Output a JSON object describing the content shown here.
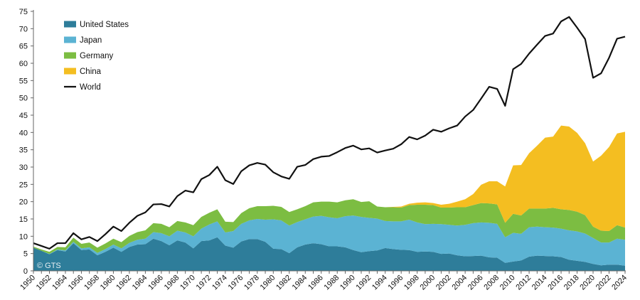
{
  "watermark": "© GTS",
  "chart_data": {
    "type": "area",
    "title": "",
    "xlabel": "",
    "ylabel": "",
    "xlim": [
      1950,
      2024
    ],
    "ylim": [
      0,
      75
    ],
    "yticks": [
      0,
      5,
      10,
      15,
      20,
      25,
      30,
      35,
      40,
      45,
      50,
      55,
      60,
      65,
      70,
      75
    ],
    "xtick_step": 2,
    "grid": false,
    "legend_position": "top-left",
    "x": [
      1950,
      1951,
      1952,
      1953,
      1954,
      1955,
      1956,
      1957,
      1958,
      1959,
      1960,
      1961,
      1962,
      1963,
      1964,
      1965,
      1966,
      1967,
      1968,
      1969,
      1970,
      1971,
      1972,
      1973,
      1974,
      1975,
      1976,
      1977,
      1978,
      1979,
      1980,
      1981,
      1982,
      1983,
      1984,
      1985,
      1986,
      1987,
      1988,
      1989,
      1990,
      1991,
      1992,
      1993,
      1994,
      1995,
      1996,
      1997,
      1998,
      1999,
      2000,
      2001,
      2002,
      2003,
      2004,
      2005,
      2006,
      2007,
      2008,
      2009,
      2010,
      2011,
      2012,
      2013,
      2014,
      2015,
      2016,
      2017,
      2018,
      2019,
      2020,
      2021,
      2022,
      2023,
      2024
    ],
    "series": [
      {
        "name": "United States",
        "kind": "stacked-area",
        "color": "#2e7d9a",
        "values": [
          6.7,
          5.8,
          4.8,
          6.0,
          5.6,
          8.0,
          6.0,
          6.2,
          4.5,
          5.5,
          6.7,
          5.5,
          6.9,
          7.6,
          7.7,
          9.3,
          8.6,
          7.4,
          8.8,
          8.2,
          6.5,
          8.6,
          8.8,
          9.7,
          7.3,
          6.7,
          8.5,
          9.2,
          9.2,
          8.4,
          6.4,
          6.3,
          5.1,
          6.8,
          7.6,
          8.0,
          7.7,
          7.1,
          7.1,
          6.8,
          6.0,
          5.4,
          5.7,
          5.9,
          6.6,
          6.3,
          6.1,
          6.0,
          5.5,
          5.6,
          5.5,
          4.9,
          5.0,
          4.5,
          4.2,
          4.3,
          4.4,
          3.9,
          3.8,
          2.3,
          2.7,
          3.0,
          4.1,
          4.4,
          4.3,
          4.2,
          4.0,
          3.2,
          2.9,
          2.6,
          2.0,
          1.6,
          1.8,
          1.8,
          1.5
        ]
      },
      {
        "name": "Japan",
        "kind": "stacked-area",
        "color": "#5bb3d3",
        "values": [
          0.0,
          0.0,
          0.1,
          0.2,
          0.3,
          0.4,
          0.5,
          0.6,
          0.7,
          0.8,
          0.9,
          1.0,
          1.2,
          1.4,
          1.6,
          1.9,
          2.3,
          2.6,
          2.8,
          2.9,
          3.5,
          3.6,
          4.6,
          4.6,
          3.8,
          4.8,
          5.1,
          5.4,
          5.8,
          6.4,
          8.5,
          8.3,
          8.0,
          7.3,
          7.3,
          7.7,
          8.2,
          8.4,
          8.1,
          9.0,
          10.0,
          10.2,
          9.6,
          9.2,
          7.8,
          8.0,
          8.2,
          8.8,
          8.5,
          7.9,
          8.1,
          8.6,
          8.3,
          8.6,
          9.1,
          9.5,
          9.6,
          10.0,
          9.8,
          7.4,
          8.3,
          7.7,
          8.5,
          8.4,
          8.3,
          8.3,
          8.2,
          8.5,
          8.5,
          8.2,
          7.5,
          6.6,
          6.4,
          7.5,
          7.5
        ]
      },
      {
        "name": "Germany",
        "kind": "stacked-area",
        "color": "#7cbd42",
        "values": [
          0.3,
          0.4,
          0.6,
          0.7,
          0.9,
          1.2,
          1.3,
          1.4,
          1.5,
          1.6,
          1.7,
          1.8,
          2.0,
          2.2,
          2.4,
          2.6,
          2.7,
          2.6,
          2.8,
          2.9,
          3.2,
          3.4,
          3.4,
          3.5,
          3.1,
          2.6,
          3.1,
          3.5,
          3.7,
          3.9,
          3.9,
          3.9,
          3.9,
          3.7,
          3.8,
          4.1,
          4.1,
          4.5,
          4.6,
          4.6,
          4.7,
          4.3,
          4.8,
          3.5,
          4.0,
          4.1,
          4.0,
          4.2,
          5.1,
          5.6,
          5.4,
          4.8,
          5.0,
          5.3,
          5.1,
          5.2,
          5.6,
          5.6,
          5.6,
          4.2,
          5.5,
          5.3,
          5.4,
          5.2,
          5.4,
          5.7,
          5.6,
          5.9,
          5.7,
          5.3,
          3.3,
          3.4,
          3.3,
          3.9,
          3.5
        ]
      },
      {
        "name": "China",
        "kind": "stacked-area",
        "color": "#f4be21",
        "values": [
          0,
          0,
          0,
          0,
          0,
          0,
          0,
          0,
          0,
          0,
          0,
          0,
          0,
          0,
          0,
          0,
          0,
          0,
          0,
          0,
          0,
          0,
          0,
          0,
          0,
          0,
          0,
          0,
          0,
          0,
          0,
          0,
          0,
          0,
          0,
          0,
          0,
          0,
          0,
          0,
          0,
          0,
          0,
          0,
          0,
          0.1,
          0.3,
          0.4,
          0.6,
          0.7,
          0.6,
          0.8,
          1.1,
          1.6,
          2.3,
          3.2,
          5.3,
          6.4,
          6.7,
          10.5,
          14.0,
          14.6,
          16.0,
          18.2,
          20.5,
          20.6,
          24.2,
          24.1,
          22.8,
          20.8,
          18.8,
          21.7,
          24.3,
          26.5,
          27.7
        ]
      },
      {
        "name": "World",
        "kind": "line",
        "color": "#111111",
        "values": [
          8.0,
          7.2,
          6.4,
          8.0,
          8.0,
          10.9,
          9.1,
          9.8,
          8.6,
          10.6,
          12.8,
          11.5,
          13.9,
          15.9,
          16.9,
          19.2,
          19.3,
          18.6,
          21.6,
          23.2,
          22.7,
          26.5,
          27.7,
          30.1,
          26.2,
          25.1,
          28.8,
          30.5,
          31.2,
          30.7,
          28.5,
          27.3,
          26.6,
          30.1,
          30.6,
          32.3,
          33.0,
          33.2,
          34.3,
          35.5,
          36.2,
          35.1,
          35.4,
          34.2,
          34.8,
          35.3,
          36.6,
          38.7,
          38.0,
          39.1,
          40.8,
          40.2,
          41.2,
          42.0,
          44.6,
          46.5,
          49.8,
          53.2,
          52.6,
          47.7,
          58.3,
          59.8,
          62.8,
          65.4,
          67.9,
          68.6,
          72.1,
          73.4,
          70.3,
          67.0,
          55.8,
          57.1,
          61.6,
          67.1,
          67.7
        ]
      }
    ]
  }
}
